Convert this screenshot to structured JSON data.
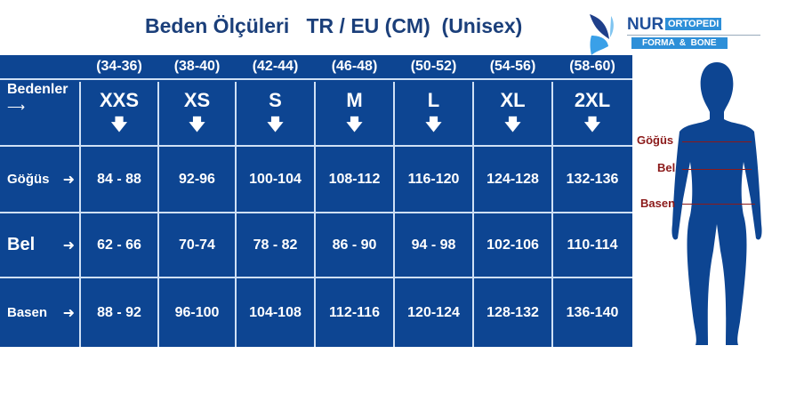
{
  "title": "Beden Ölçüleri   TR / EU (CM)  (Unisex)",
  "logo": {
    "brand": "NUR",
    "tag": "ORTOPEDI",
    "sub": "FORMA  &  BONE"
  },
  "colors": {
    "table": "#0d4592",
    "title": "#1b3f7a",
    "label": "#8b1a1a"
  },
  "table": {
    "size_row_label": "Bedenler",
    "ranges": [
      "(34-36)",
      "(38-40)",
      "(42-44)",
      "(46-48)",
      "(50-52)",
      "(54-56)",
      "(58-60)"
    ],
    "sizes": [
      "XXS",
      "XS",
      "S",
      "M",
      "L",
      "XL",
      "2XL"
    ],
    "rows": [
      {
        "label": "Göğüs",
        "values": [
          "84 - 88",
          "92-96",
          "100-104",
          "108-112",
          "116-120",
          "124-128",
          "132-136"
        ]
      },
      {
        "label": "Bel",
        "values": [
          "62 - 66",
          "70-74",
          "78 - 82",
          "86 - 90",
          "94 - 98",
          "102-106",
          "110-114"
        ]
      },
      {
        "label": "Basen",
        "values": [
          "88 - 92",
          "96-100",
          "104-108",
          "112-116",
          "120-124",
          "128-132",
          "136-140"
        ]
      }
    ]
  },
  "figure": {
    "labels": [
      "Göğüs",
      "Bel",
      "Basen"
    ]
  }
}
